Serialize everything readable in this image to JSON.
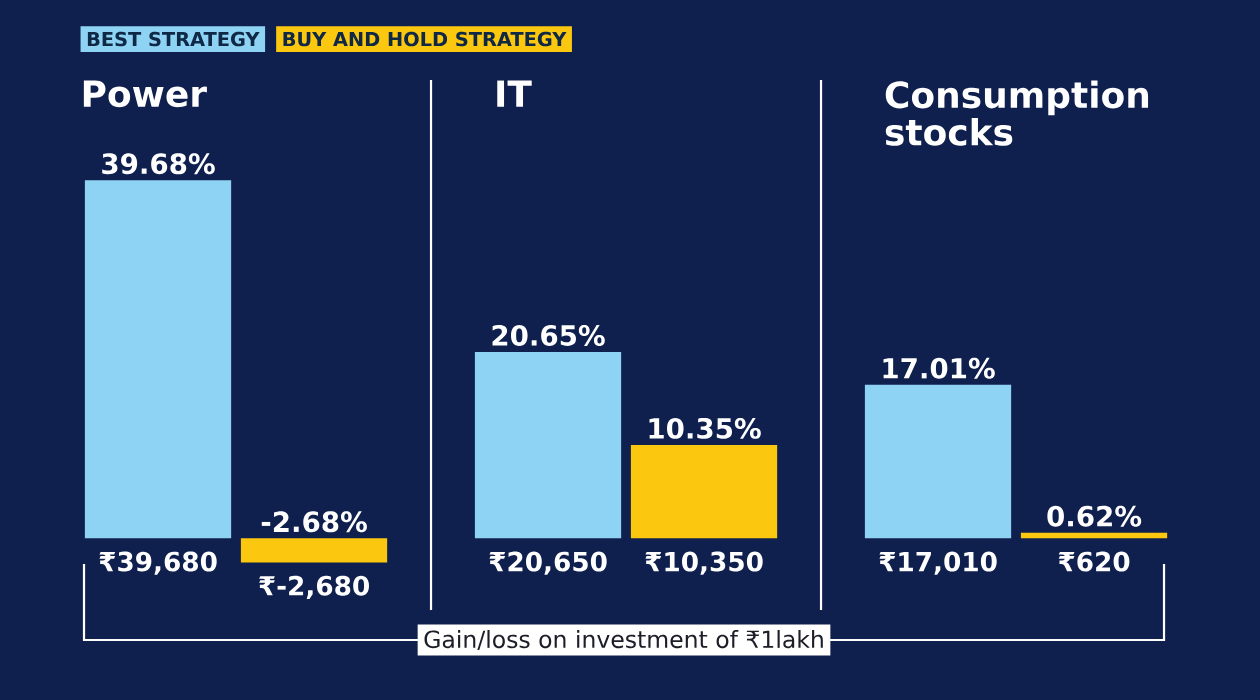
{
  "chart_data": [
    {
      "type": "bar",
      "title": "Power",
      "categories": [
        null
      ],
      "legend": "top",
      "series": [
        {
          "name": "BEST STRATEGY",
          "color": "#8fd3f4",
          "values": [
            39.68
          ],
          "value_labels": [
            "39.68%"
          ]
        },
        {
          "name": "BUY AND HOLD STRATEGY",
          "color": "#fcc70f",
          "values": [
            -2.68
          ],
          "value_labels": [
            "-2.68%"
          ]
        }
      ],
      "annotations": [
        "₹39,680",
        "₹-2,680"
      ]
    },
    {
      "type": "bar",
      "title": "IT",
      "categories": [
        null
      ],
      "xlabel": "Gain/loss on investment of ₹1lakh",
      "series": [
        {
          "color": "#8fd3f4",
          "values": [
            20.65
          ],
          "value_labels": [
            "20.65%"
          ]
        },
        {
          "color": "#fcc70f",
          "values": [
            10.35
          ],
          "value_labels": [
            "10.35%"
          ]
        }
      ],
      "annotations": [
        "₹20,650",
        "₹10,350"
      ]
    },
    {
      "type": "bar",
      "title": "Consumption stocks",
      "categories": [
        null
      ],
      "series": [
        {
          "color": "#8fd3f4",
          "values": [
            17.01
          ],
          "value_labels": [
            "17.01%"
          ]
        },
        {
          "color": "#fcc70f",
          "values": [
            0.62
          ],
          "value_labels": [
            "0.62%"
          ]
        }
      ],
      "annotations": [
        "₹17,010",
        "₹620"
      ]
    }
  ]
}
